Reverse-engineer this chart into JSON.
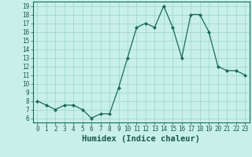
{
  "x": [
    0,
    1,
    2,
    3,
    4,
    5,
    6,
    7,
    8,
    9,
    10,
    11,
    12,
    13,
    14,
    15,
    16,
    17,
    18,
    19,
    20,
    21,
    22,
    23
  ],
  "y": [
    8.0,
    7.5,
    7.0,
    7.5,
    7.5,
    7.0,
    6.0,
    6.5,
    6.5,
    9.5,
    13.0,
    16.5,
    17.0,
    16.5,
    19.0,
    16.5,
    13.0,
    18.0,
    18.0,
    16.0,
    12.0,
    11.5,
    11.5,
    11.0
  ],
  "xlabel": "Humidex (Indice chaleur)",
  "xlim": [
    -0.5,
    23.5
  ],
  "ylim": [
    5.5,
    19.5
  ],
  "yticks": [
    6,
    7,
    8,
    9,
    10,
    11,
    12,
    13,
    14,
    15,
    16,
    17,
    18,
    19
  ],
  "xticks": [
    0,
    1,
    2,
    3,
    4,
    5,
    6,
    7,
    8,
    9,
    10,
    11,
    12,
    13,
    14,
    15,
    16,
    17,
    18,
    19,
    20,
    21,
    22,
    23
  ],
  "line_color": "#1a6b5a",
  "marker": "D",
  "marker_size": 2.0,
  "bg_color": "#c8f0e8",
  "grid_color": "#99d4c8",
  "tick_label_color": "#1a5a4a",
  "xlabel_color": "#1a5a4a",
  "tick_fontsize": 5.5,
  "xlabel_fontsize": 7.5
}
